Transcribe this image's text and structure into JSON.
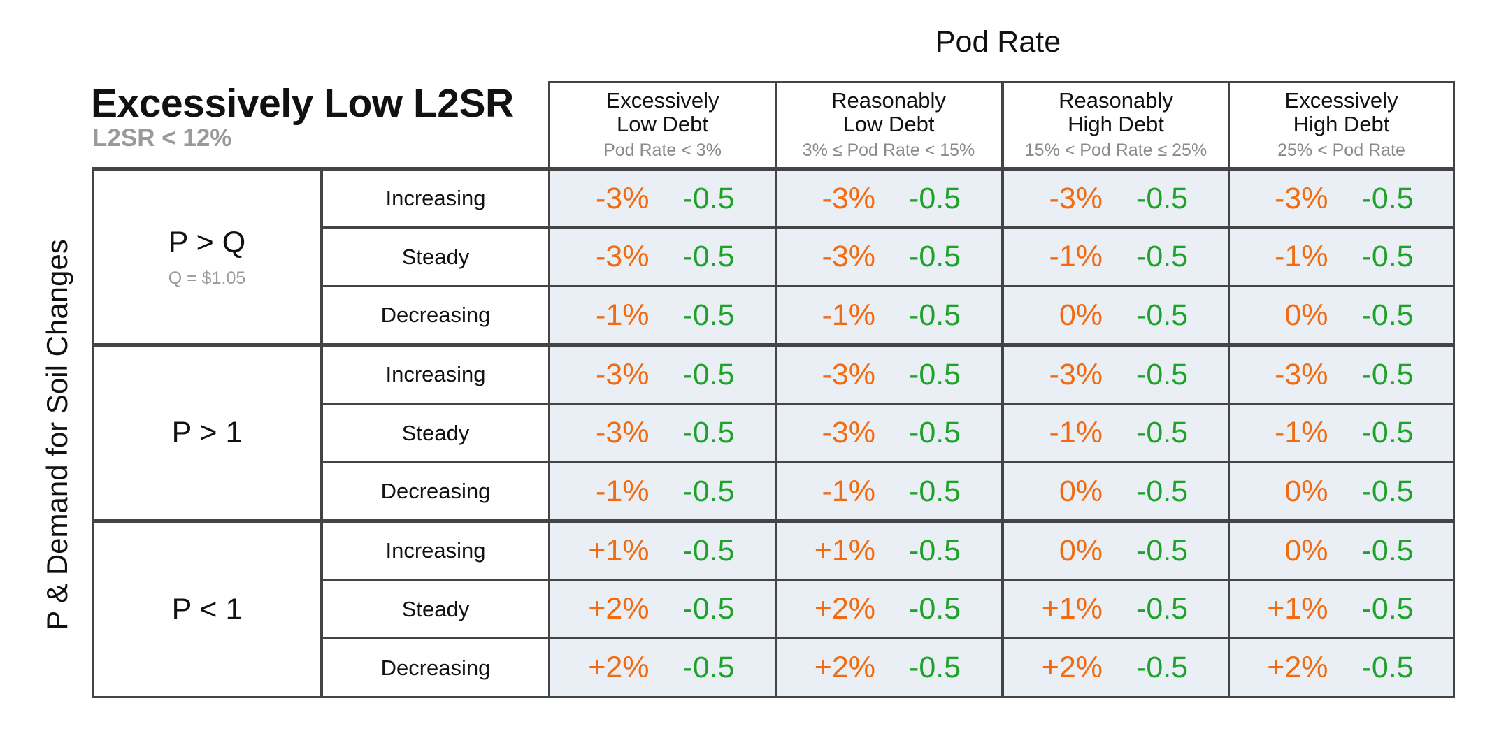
{
  "top_title": "Pod Rate",
  "main_title": "Excessively Low L2SR",
  "main_subtitle": "L2SR < 12%",
  "y_title": "P & Demand for Soil Changes",
  "columns": [
    {
      "line1": "Excessively",
      "line2": "Low Debt",
      "sub": "Pod Rate < 3%"
    },
    {
      "line1": "Reasonably",
      "line2": "Low Debt",
      "sub": "3% ≤ Pod Rate < 15%"
    },
    {
      "line1": "Reasonably",
      "line2": "High Debt",
      "sub": "15% < Pod Rate ≤ 25%"
    },
    {
      "line1": "Excessively",
      "line2": "High Debt",
      "sub": "25% < Pod Rate"
    }
  ],
  "groups": [
    {
      "label": "P > Q",
      "sub": "Q = $1.05",
      "rows": [
        {
          "trend": "Increasing",
          "cells": [
            {
              "pct": "-3%",
              "val": "-0.5"
            },
            {
              "pct": "-3%",
              "val": "-0.5"
            },
            {
              "pct": "-3%",
              "val": "-0.5"
            },
            {
              "pct": "-3%",
              "val": "-0.5"
            }
          ]
        },
        {
          "trend": "Steady",
          "cells": [
            {
              "pct": "-3%",
              "val": "-0.5"
            },
            {
              "pct": "-3%",
              "val": "-0.5"
            },
            {
              "pct": "-1%",
              "val": "-0.5"
            },
            {
              "pct": "-1%",
              "val": "-0.5"
            }
          ]
        },
        {
          "trend": "Decreasing",
          "cells": [
            {
              "pct": "-1%",
              "val": "-0.5"
            },
            {
              "pct": "-1%",
              "val": "-0.5"
            },
            {
              "pct": "0%",
              "val": "-0.5"
            },
            {
              "pct": "0%",
              "val": "-0.5"
            }
          ]
        }
      ]
    },
    {
      "label": "P > 1",
      "sub": "",
      "rows": [
        {
          "trend": "Increasing",
          "cells": [
            {
              "pct": "-3%",
              "val": "-0.5"
            },
            {
              "pct": "-3%",
              "val": "-0.5"
            },
            {
              "pct": "-3%",
              "val": "-0.5"
            },
            {
              "pct": "-3%",
              "val": "-0.5"
            }
          ]
        },
        {
          "trend": "Steady",
          "cells": [
            {
              "pct": "-3%",
              "val": "-0.5"
            },
            {
              "pct": "-3%",
              "val": "-0.5"
            },
            {
              "pct": "-1%",
              "val": "-0.5"
            },
            {
              "pct": "-1%",
              "val": "-0.5"
            }
          ]
        },
        {
          "trend": "Decreasing",
          "cells": [
            {
              "pct": "-1%",
              "val": "-0.5"
            },
            {
              "pct": "-1%",
              "val": "-0.5"
            },
            {
              "pct": "0%",
              "val": "-0.5"
            },
            {
              "pct": "0%",
              "val": "-0.5"
            }
          ]
        }
      ]
    },
    {
      "label": "P < 1",
      "sub": "",
      "rows": [
        {
          "trend": "Increasing",
          "cells": [
            {
              "pct": "+1%",
              "val": "-0.5"
            },
            {
              "pct": "+1%",
              "val": "-0.5"
            },
            {
              "pct": "0%",
              "val": "-0.5"
            },
            {
              "pct": "0%",
              "val": "-0.5"
            }
          ]
        },
        {
          "trend": "Steady",
          "cells": [
            {
              "pct": "+2%",
              "val": "-0.5"
            },
            {
              "pct": "+2%",
              "val": "-0.5"
            },
            {
              "pct": "+1%",
              "val": "-0.5"
            },
            {
              "pct": "+1%",
              "val": "-0.5"
            }
          ]
        },
        {
          "trend": "Decreasing",
          "cells": [
            {
              "pct": "+2%",
              "val": "-0.5"
            },
            {
              "pct": "+2%",
              "val": "-0.5"
            },
            {
              "pct": "+2%",
              "val": "-0.5"
            },
            {
              "pct": "+2%",
              "val": "-0.5"
            }
          ]
        }
      ]
    }
  ],
  "colors": {
    "percent": "#f26b11",
    "value": "#1ea32a",
    "cell_bg": "#e9eff5",
    "border": "#444444"
  }
}
